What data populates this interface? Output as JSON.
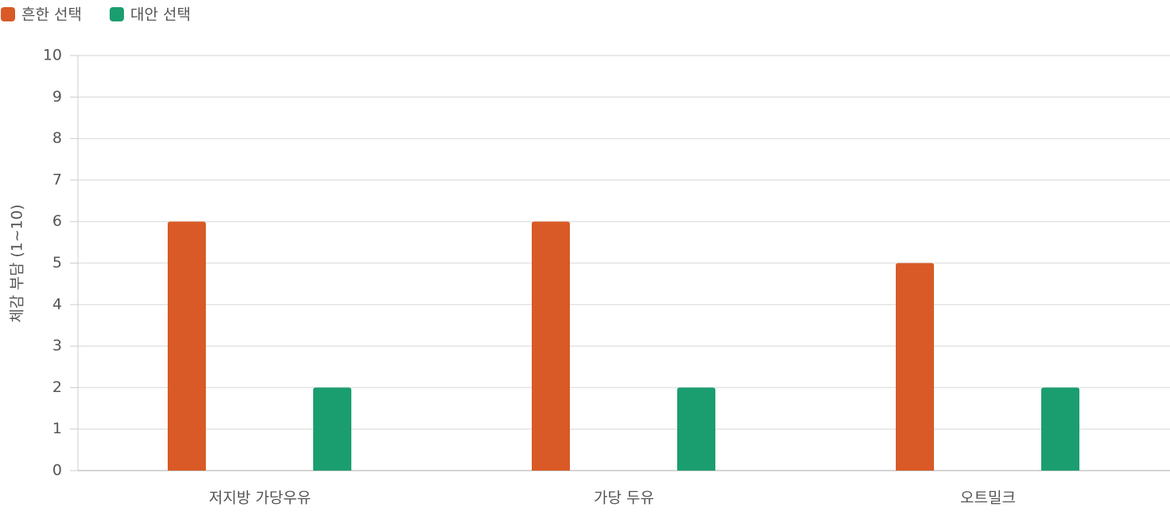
{
  "chart_data": {
    "type": "bar",
    "categories": [
      "저지방 가당우유",
      "가당 두유",
      "오트밀크"
    ],
    "series": [
      {
        "name": "흔한 선택",
        "color": "#d95a26",
        "values": [
          6,
          6,
          5
        ]
      },
      {
        "name": "대안 선택",
        "color": "#1b9e6f",
        "values": [
          2,
          2,
          2
        ]
      }
    ],
    "y_label": "체감 부담 (1~10)",
    "ylim": [
      0,
      10
    ],
    "yticks": [
      0,
      1,
      2,
      3,
      4,
      5,
      6,
      7,
      8,
      9,
      10
    ],
    "grid": true,
    "legend": "top-left"
  }
}
